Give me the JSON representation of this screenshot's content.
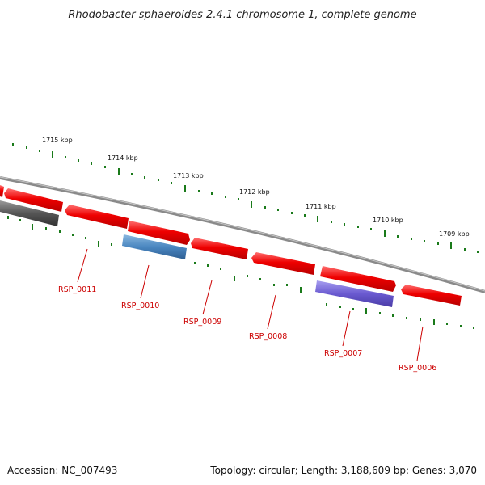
{
  "title": "Rhodobacter sphaeroides 2.4.1 chromosome 1, complete genome",
  "footer": {
    "accession": "Accession: NC_007493",
    "summary": "Topology: circular; Length: 3,188,609 bp; Genes: 3,070"
  },
  "kbp_labels": [
    "1715 kbp",
    "1714 kbp",
    "1713 kbp",
    "1712 kbp",
    "1711 kbp",
    "1710 kbp",
    "1709 kbp"
  ],
  "gene_labels": [
    "RSP_0011",
    "RSP_0010",
    "RSP_0009",
    "RSP_0008",
    "RSP_0007",
    "RSP_0006"
  ],
  "colors": {
    "backbone": "#888888",
    "cds_red": "#ee0000",
    "gene_gray": "#555555",
    "gene_blue": "#4a86c0",
    "gene_purple": "#6a5ad0",
    "tick_green": "#1a7a1a",
    "label_red": "#cc0000"
  }
}
